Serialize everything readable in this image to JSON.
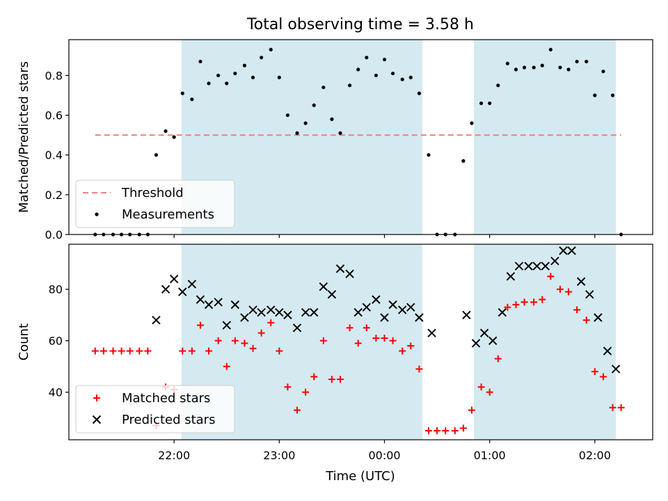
{
  "chart_data": {
    "type": "scatter",
    "title": "Total observing time = 3.58 h",
    "xlabel": "Time (UTC)",
    "x_unit": "hours UTC",
    "xlim": [
      21.0,
      26.55
    ],
    "xticks": [
      {
        "value": 22,
        "label": "22:00"
      },
      {
        "value": 23,
        "label": "23:00"
      },
      {
        "value": 24,
        "label": "00:00"
      },
      {
        "value": 25,
        "label": "01:00"
      },
      {
        "value": 26,
        "label": "02:00"
      }
    ],
    "shaded_intervals": [
      [
        22.07,
        24.36
      ],
      [
        24.85,
        26.2
      ]
    ],
    "shade_color": "#d4eaf0",
    "panels": [
      {
        "id": "ratio",
        "ylabel": "Matched/Predicted stars",
        "ylim": [
          0,
          0.98
        ],
        "yticks": [
          0.0,
          0.2,
          0.4,
          0.6,
          0.8
        ],
        "tick_decimals": 1,
        "legend": "lower-left",
        "threshold": {
          "name": "Threshold",
          "value": 0.5,
          "x_range": [
            21.25,
            26.25
          ],
          "color": "#f08080"
        },
        "series": [
          {
            "name": "Measurements",
            "marker": "dot",
            "color": "#000000",
            "x": [
              21.25,
              21.33,
              21.42,
              21.5,
              21.58,
              21.67,
              21.75,
              21.83,
              21.92,
              22.0,
              22.08,
              22.17,
              22.25,
              22.33,
              22.42,
              22.5,
              22.58,
              22.67,
              22.75,
              22.83,
              22.92,
              23.0,
              23.08,
              23.17,
              23.25,
              23.33,
              23.42,
              23.5,
              23.58,
              23.67,
              23.75,
              23.83,
              23.92,
              24.0,
              24.08,
              24.17,
              24.25,
              24.33,
              24.42,
              24.5,
              24.58,
              24.67,
              24.75,
              24.83,
              24.92,
              25.0,
              25.08,
              25.17,
              25.25,
              25.33,
              25.42,
              25.5,
              25.58,
              25.67,
              25.75,
              25.83,
              25.92,
              26.0,
              26.08,
              26.17,
              26.25
            ],
            "y": [
              0.0,
              0.0,
              0.0,
              0.0,
              0.0,
              0.0,
              0.0,
              0.4,
              0.52,
              0.49,
              0.71,
              0.68,
              0.87,
              0.76,
              0.8,
              0.76,
              0.81,
              0.85,
              0.79,
              0.89,
              0.93,
              0.79,
              0.6,
              0.51,
              0.56,
              0.65,
              0.74,
              0.58,
              0.51,
              0.75,
              0.83,
              0.89,
              0.8,
              0.88,
              0.81,
              0.78,
              0.79,
              0.71,
              0.4,
              0.0,
              0.0,
              0.0,
              0.37,
              0.56,
              0.66,
              0.66,
              0.75,
              0.86,
              0.83,
              0.84,
              0.84,
              0.85,
              0.93,
              0.84,
              0.83,
              0.87,
              0.87,
              0.7,
              0.82,
              0.7,
              0.0
            ]
          }
        ]
      },
      {
        "id": "count",
        "ylabel": "Count",
        "ylim": [
          21.5,
          97.5
        ],
        "yticks": [
          40,
          60,
          80
        ],
        "tick_decimals": 0,
        "legend": "lower-left",
        "series": [
          {
            "name": "Matched stars",
            "marker": "plus",
            "color": "#ff0000",
            "x": [
              21.25,
              21.33,
              21.42,
              21.5,
              21.58,
              21.67,
              21.75,
              21.83,
              21.92,
              22.0,
              22.08,
              22.17,
              22.25,
              22.33,
              22.42,
              22.5,
              22.58,
              22.67,
              22.75,
              22.83,
              22.92,
              23.0,
              23.08,
              23.17,
              23.25,
              23.33,
              23.42,
              23.5,
              23.58,
              23.67,
              23.75,
              23.83,
              23.92,
              24.0,
              24.08,
              24.17,
              24.25,
              24.33,
              24.42,
              24.5,
              24.58,
              24.67,
              24.75,
              24.83,
              24.92,
              25.0,
              25.08,
              25.17,
              25.25,
              25.33,
              25.42,
              25.5,
              25.58,
              25.67,
              25.75,
              25.83,
              25.92,
              26.0,
              26.08,
              26.17,
              26.25
            ],
            "y": [
              56,
              56,
              56,
              56,
              56,
              56,
              56,
              27,
              42,
              41,
              56,
              56,
              66,
              56,
              60,
              50,
              60,
              59,
              57,
              63,
              67,
              56,
              42,
              33,
              40,
              46,
              60,
              45,
              45,
              65,
              59,
              65,
              61,
              61,
              60,
              56,
              58,
              49,
              25,
              25,
              25,
              25,
              26,
              33,
              42,
              40,
              53,
              73,
              74,
              75,
              75,
              76,
              85,
              80,
              79,
              72,
              68,
              48,
              46,
              34,
              34
            ]
          },
          {
            "name": "Predicted stars",
            "marker": "x",
            "color": "#000000",
            "x": [
              21.83,
              21.92,
              22.0,
              22.08,
              22.17,
              22.25,
              22.33,
              22.42,
              22.5,
              22.58,
              22.67,
              22.75,
              22.83,
              22.92,
              23.0,
              23.08,
              23.17,
              23.25,
              23.33,
              23.42,
              23.5,
              23.58,
              23.67,
              23.75,
              23.83,
              23.92,
              24.0,
              24.08,
              24.17,
              24.25,
              24.33,
              24.45,
              24.78,
              24.87,
              24.95,
              25.03,
              25.12,
              25.2,
              25.28,
              25.37,
              25.45,
              25.53,
              25.62,
              25.7,
              25.78,
              25.87,
              25.95,
              26.03,
              26.12,
              26.2
            ],
            "y": [
              68,
              80,
              84,
              79,
              82,
              76,
              74,
              75,
              66,
              74,
              69,
              72,
              71,
              72,
              71,
              70,
              65,
              71,
              71,
              81,
              78,
              88,
              86,
              71,
              73,
              76,
              69,
              74,
              72,
              73,
              69,
              63,
              70,
              59,
              63,
              60,
              71,
              85,
              89,
              89,
              89,
              89,
              91,
              95,
              95,
              83,
              78,
              69,
              56,
              49
            ]
          }
        ]
      }
    ]
  }
}
